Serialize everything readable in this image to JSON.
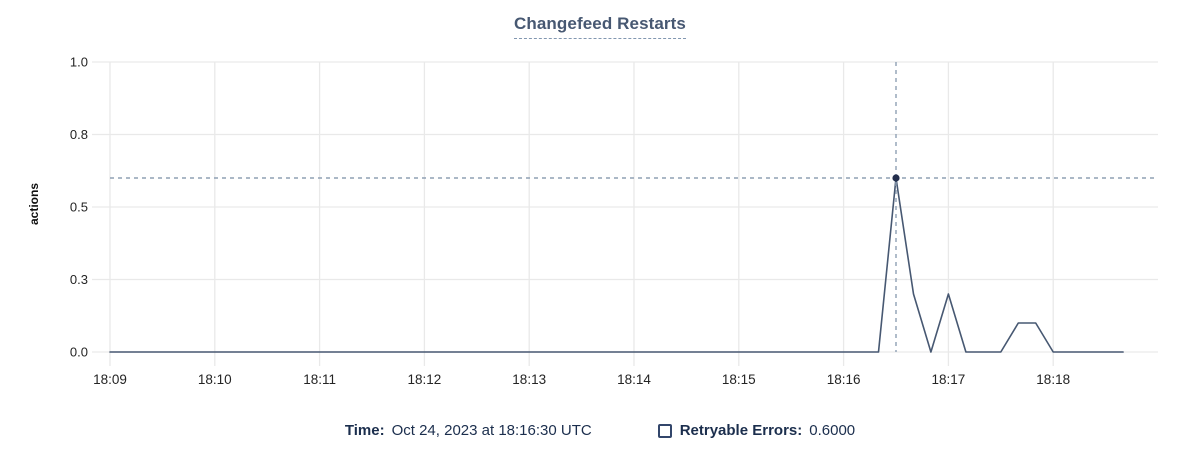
{
  "chart_data": {
    "type": "line",
    "title": "Changefeed Restarts",
    "xlabel": "",
    "ylabel": "actions",
    "ylim": [
      0,
      1.0
    ],
    "grid": true,
    "y_ticks": [
      {
        "value": 0.0,
        "label": "0.0"
      },
      {
        "value": 0.25,
        "label": "0.3"
      },
      {
        "value": 0.5,
        "label": "0.5"
      },
      {
        "value": 0.75,
        "label": "0.8"
      },
      {
        "value": 1.0,
        "label": "1.0"
      }
    ],
    "x_domain": [
      "18:09:00",
      "18:19:00"
    ],
    "x_ticks": [
      "18:09",
      "18:10",
      "18:11",
      "18:12",
      "18:13",
      "18:14",
      "18:15",
      "18:16",
      "18:17",
      "18:18"
    ],
    "series": [
      {
        "name": "Retryable Errors",
        "start_time": "18:09:00",
        "interval_seconds": 10,
        "values": [
          0,
          0,
          0,
          0,
          0,
          0,
          0,
          0,
          0,
          0,
          0,
          0,
          0,
          0,
          0,
          0,
          0,
          0,
          0,
          0,
          0,
          0,
          0,
          0,
          0,
          0,
          0,
          0,
          0,
          0,
          0,
          0,
          0,
          0,
          0,
          0,
          0,
          0,
          0,
          0,
          0,
          0,
          0,
          0,
          0,
          0.6,
          0.2,
          0,
          0.2,
          0,
          0,
          0,
          0.1,
          0.1,
          0,
          0,
          0,
          0,
          0
        ]
      }
    ],
    "crosshair": {
      "time": "18:16:30",
      "value": 0.6
    },
    "colors": {
      "line": "#475872",
      "dot": "#242f4d",
      "crosshair": "#8fa0b4",
      "grid": "#e9e9e9",
      "tick_text": "#242424"
    }
  },
  "legend": {
    "time_label": "Time:",
    "time_value": "Oct 24, 2023 at 18:16:30 UTC",
    "series_label": "Retryable Errors:",
    "series_value": "0.6000",
    "checkbox_checked": false
  },
  "colors": {
    "title": "#475872",
    "legend_text": "#1b2e4d"
  }
}
